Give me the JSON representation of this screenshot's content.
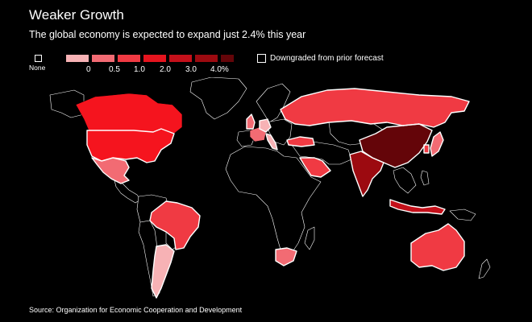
{
  "header": {
    "title": "Weaker Growth",
    "subtitle": "The global economy is expected to expand just 2.4% this year"
  },
  "legend": {
    "none_label": "None",
    "ticks": [
      "0",
      "0.5",
      "1.0",
      "2.0",
      "3.0",
      "4.0%"
    ],
    "scale_colors": [
      "#f7b2b5",
      "#f26b73",
      "#f03a43",
      "#e5141e",
      "#c4101a",
      "#9c0a10",
      "#640509"
    ],
    "downgraded_label": "Downgraded from prior forecast"
  },
  "colors": {
    "background": "#000000",
    "text": "#ffffff",
    "border": "#ffffff"
  },
  "countries": [
    {
      "name": "Canada",
      "color": "#f5141e",
      "downgraded": false
    },
    {
      "name": "United States",
      "color": "#f5141e",
      "downgraded": true
    },
    {
      "name": "Mexico",
      "color": "#f26b73",
      "downgraded": true
    },
    {
      "name": "Brazil",
      "color": "#f03a43",
      "downgraded": true
    },
    {
      "name": "Argentina",
      "color": "#f7b2b5",
      "downgraded": true
    },
    {
      "name": "United Kingdom",
      "color": "#f26b73",
      "downgraded": true
    },
    {
      "name": "France",
      "color": "#f26b73",
      "downgraded": false
    },
    {
      "name": "Germany",
      "color": "#f7b2b5",
      "downgraded": true
    },
    {
      "name": "Italy",
      "color": "#f7b2b5",
      "downgraded": true
    },
    {
      "name": "Russia",
      "color": "#f03a43",
      "downgraded": true
    },
    {
      "name": "Turkey",
      "color": "#f03a43",
      "downgraded": true
    },
    {
      "name": "Saudi Arabia",
      "color": "#f03a43",
      "downgraded": true
    },
    {
      "name": "India",
      "color": "#9c0a10",
      "downgraded": true
    },
    {
      "name": "China",
      "color": "#640509",
      "downgraded": true
    },
    {
      "name": "Japan",
      "color": "#f26b73",
      "downgraded": true
    },
    {
      "name": "South Korea",
      "color": "#f03a43",
      "downgraded": true
    },
    {
      "name": "Indonesia",
      "color": "#c4101a",
      "downgraded": true
    },
    {
      "name": "South Africa",
      "color": "#f26b73",
      "downgraded": true
    },
    {
      "name": "Australia",
      "color": "#f03a43",
      "downgraded": true
    }
  ],
  "source": "Source: Organization for Economic Cooperation and Development"
}
